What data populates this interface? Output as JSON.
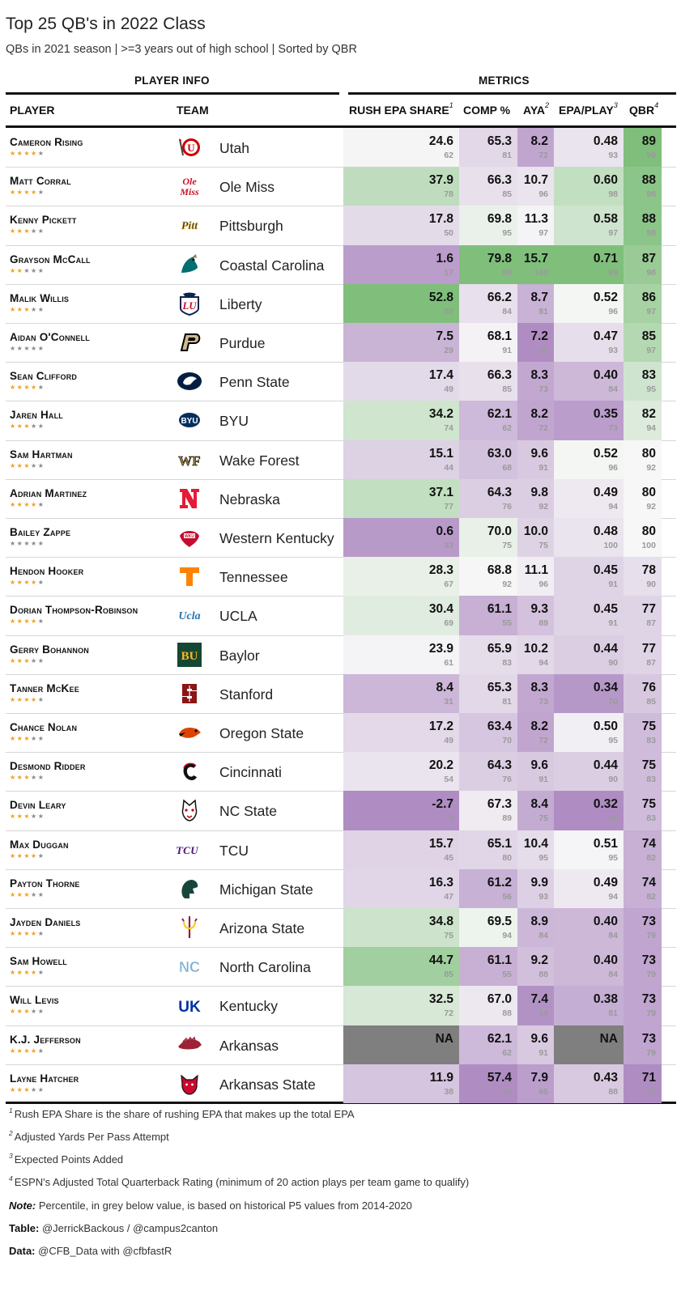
{
  "title": "Top 25 QB's in 2022 Class",
  "subtitle": "QBs in 2021 season | >=3 years out of high school | Sorted by QBR",
  "groups": {
    "player_info": "PLAYER INFO",
    "metrics": "METRICS"
  },
  "columns": {
    "player": "PLAYER",
    "team": "TEAM",
    "rush": "RUSH EPA SHARE",
    "rush_sup": "1",
    "comp": "COMP %",
    "aya": "AYA",
    "aya_sup": "2",
    "epa": "EPA/PLAY",
    "epa_sup": "3",
    "qbr": "QBR",
    "qbr_sup": "4"
  },
  "colors": {
    "green_strong": "#7fbf7b",
    "purple_strong": "#af8dc3",
    "neutral": "#f7f7f7",
    "na": "#7f7f7f"
  },
  "chart_data": {
    "type": "table",
    "title": "Top 25 QB's in 2022 Class",
    "subtitle": "QBs in 2021 season | >=3 years out of high school | Sorted by QBR",
    "columns": [
      "PLAYER",
      "TEAM",
      "RUSH EPA SHARE",
      "COMP %",
      "AYA",
      "EPA/PLAY",
      "QBR"
    ],
    "rows": [
      {
        "player": "Cameron Rising",
        "stars": 4,
        "team": "Utah",
        "logo": "utah-drum-logo",
        "rush": "24.6",
        "rush_p": "62",
        "comp": "65.3",
        "comp_p": "81",
        "aya": "8.2",
        "aya_p": "72",
        "epa": "0.48",
        "epa_p": "93",
        "qbr": "89",
        "qbr_p": "99"
      },
      {
        "player": "Matt Corral",
        "stars": 4,
        "team": "Ole Miss",
        "logo": "ole-miss-script-logo",
        "rush": "37.9",
        "rush_p": "78",
        "comp": "66.3",
        "comp_p": "85",
        "aya": "10.7",
        "aya_p": "96",
        "epa": "0.60",
        "epa_p": "98",
        "qbr": "88",
        "qbr_p": "98"
      },
      {
        "player": "Kenny Pickett",
        "stars": 3,
        "team": "Pittsburgh",
        "logo": "pitt-script-logo",
        "rush": "17.8",
        "rush_p": "50",
        "comp": "69.8",
        "comp_p": "95",
        "aya": "11.3",
        "aya_p": "97",
        "epa": "0.58",
        "epa_p": "97",
        "qbr": "88",
        "qbr_p": "98"
      },
      {
        "player": "Grayson McCall",
        "stars": 2,
        "team": "Coastal Carolina",
        "logo": "chanticleer-logo",
        "rush": "1.6",
        "rush_p": "17",
        "comp": "79.8",
        "comp_p": "99",
        "aya": "15.7",
        "aya_p": "100",
        "epa": "0.71",
        "epa_p": "99",
        "qbr": "87",
        "qbr_p": "98"
      },
      {
        "player": "Malik Willis",
        "stars": 3,
        "team": "Liberty",
        "logo": "liberty-flames-logo",
        "rush": "52.8",
        "rush_p": "89",
        "comp": "66.2",
        "comp_p": "84",
        "aya": "8.7",
        "aya_p": "81",
        "epa": "0.52",
        "epa_p": "96",
        "qbr": "86",
        "qbr_p": "97"
      },
      {
        "player": "Aidan O'Connell",
        "stars": 0,
        "team": "Purdue",
        "logo": "purdue-p-logo",
        "rush": "7.5",
        "rush_p": "29",
        "comp": "68.1",
        "comp_p": "91",
        "aya": "7.2",
        "aya_p": "50",
        "epa": "0.47",
        "epa_p": "93",
        "qbr": "85",
        "qbr_p": "97"
      },
      {
        "player": "Sean Clifford",
        "stars": 4,
        "team": "Penn State",
        "logo": "nittany-lion-logo",
        "rush": "17.4",
        "rush_p": "49",
        "comp": "66.3",
        "comp_p": "85",
        "aya": "8.3",
        "aya_p": "73",
        "epa": "0.40",
        "epa_p": "84",
        "qbr": "83",
        "qbr_p": "95"
      },
      {
        "player": "Jaren Hall",
        "stars": 3,
        "team": "BYU",
        "logo": "byu-oval-logo",
        "rush": "34.2",
        "rush_p": "74",
        "comp": "62.1",
        "comp_p": "62",
        "aya": "8.2",
        "aya_p": "72",
        "epa": "0.35",
        "epa_p": "73",
        "qbr": "82",
        "qbr_p": "94"
      },
      {
        "player": "Sam Hartman",
        "stars": 3,
        "team": "Wake Forest",
        "logo": "wf-logo",
        "rush": "15.1",
        "rush_p": "44",
        "comp": "63.0",
        "comp_p": "68",
        "aya": "9.6",
        "aya_p": "91",
        "epa": "0.52",
        "epa_p": "96",
        "qbr": "80",
        "qbr_p": "92"
      },
      {
        "player": "Adrian Martinez",
        "stars": 4,
        "team": "Nebraska",
        "logo": "nebraska-n-logo",
        "rush": "37.1",
        "rush_p": "77",
        "comp": "64.3",
        "comp_p": "76",
        "aya": "9.8",
        "aya_p": "92",
        "epa": "0.49",
        "epa_p": "94",
        "qbr": "80",
        "qbr_p": "92"
      },
      {
        "player": "Bailey Zappe",
        "stars": 0,
        "team": "Western Kentucky",
        "logo": "wku-towel-logo",
        "rush": "0.6",
        "rush_p": "33",
        "comp": "70.0",
        "comp_p": "75",
        "aya": "10.0",
        "aya_p": "75",
        "epa": "0.48",
        "epa_p": "100",
        "qbr": "80",
        "qbr_p": "100"
      },
      {
        "player": "Hendon Hooker",
        "stars": 4,
        "team": "Tennessee",
        "logo": "tennessee-t-logo",
        "rush": "28.3",
        "rush_p": "67",
        "comp": "68.8",
        "comp_p": "92",
        "aya": "11.1",
        "aya_p": "96",
        "epa": "0.45",
        "epa_p": "91",
        "qbr": "78",
        "qbr_p": "90"
      },
      {
        "player": "Dorian Thompson-Robinson",
        "stars": 4,
        "team": "UCLA",
        "logo": "ucla-script-logo",
        "rush": "30.4",
        "rush_p": "69",
        "comp": "61.1",
        "comp_p": "55",
        "aya": "9.3",
        "aya_p": "89",
        "epa": "0.45",
        "epa_p": "91",
        "qbr": "77",
        "qbr_p": "87"
      },
      {
        "player": "Gerry Bohannon",
        "stars": 3,
        "team": "Baylor",
        "logo": "baylor-bu-logo",
        "rush": "23.9",
        "rush_p": "61",
        "comp": "65.9",
        "comp_p": "83",
        "aya": "10.2",
        "aya_p": "94",
        "epa": "0.44",
        "epa_p": "90",
        "qbr": "77",
        "qbr_p": "87"
      },
      {
        "player": "Tanner McKee",
        "stars": 4,
        "team": "Stanford",
        "logo": "stanford-s-logo",
        "rush": "8.4",
        "rush_p": "31",
        "comp": "65.3",
        "comp_p": "81",
        "aya": "8.3",
        "aya_p": "73",
        "epa": "0.34",
        "epa_p": "70",
        "qbr": "76",
        "qbr_p": "85"
      },
      {
        "player": "Chance Nolan",
        "stars": 3,
        "team": "Oregon State",
        "logo": "beaver-logo",
        "rush": "17.2",
        "rush_p": "49",
        "comp": "63.4",
        "comp_p": "70",
        "aya": "8.2",
        "aya_p": "72",
        "epa": "0.50",
        "epa_p": "95",
        "qbr": "75",
        "qbr_p": "83"
      },
      {
        "player": "Desmond Ridder",
        "stars": 3,
        "team": "Cincinnati",
        "logo": "cincinnati-c-logo",
        "rush": "20.2",
        "rush_p": "54",
        "comp": "64.3",
        "comp_p": "76",
        "aya": "9.6",
        "aya_p": "91",
        "epa": "0.44",
        "epa_p": "90",
        "qbr": "75",
        "qbr_p": "83"
      },
      {
        "player": "Devin Leary",
        "stars": 3,
        "team": "NC State",
        "logo": "wolfpack-logo",
        "rush": "-2.7",
        "rush_p": "9",
        "comp": "67.3",
        "comp_p": "89",
        "aya": "8.4",
        "aya_p": "75",
        "epa": "0.32",
        "epa_p": "66",
        "qbr": "75",
        "qbr_p": "83"
      },
      {
        "player": "Max Duggan",
        "stars": 4,
        "team": "TCU",
        "logo": "tcu-logo",
        "rush": "15.7",
        "rush_p": "45",
        "comp": "65.1",
        "comp_p": "80",
        "aya": "10.4",
        "aya_p": "95",
        "epa": "0.51",
        "epa_p": "95",
        "qbr": "74",
        "qbr_p": "82"
      },
      {
        "player": "Payton Thorne",
        "stars": 3,
        "team": "Michigan State",
        "logo": "spartan-helmet-logo",
        "rush": "16.3",
        "rush_p": "47",
        "comp": "61.2",
        "comp_p": "56",
        "aya": "9.9",
        "aya_p": "93",
        "epa": "0.49",
        "epa_p": "94",
        "qbr": "74",
        "qbr_p": "82"
      },
      {
        "player": "Jayden Daniels",
        "stars": 4,
        "team": "Arizona State",
        "logo": "pitchfork-logo",
        "rush": "34.8",
        "rush_p": "75",
        "comp": "69.5",
        "comp_p": "94",
        "aya": "8.9",
        "aya_p": "84",
        "epa": "0.40",
        "epa_p": "84",
        "qbr": "73",
        "qbr_p": "79"
      },
      {
        "player": "Sam Howell",
        "stars": 4,
        "team": "North Carolina",
        "logo": "unc-nc-logo",
        "rush": "44.7",
        "rush_p": "85",
        "comp": "61.1",
        "comp_p": "55",
        "aya": "9.2",
        "aya_p": "88",
        "epa": "0.40",
        "epa_p": "84",
        "qbr": "73",
        "qbr_p": "79"
      },
      {
        "player": "Will Levis",
        "stars": 3,
        "team": "Kentucky",
        "logo": "kentucky-uk-logo",
        "rush": "32.5",
        "rush_p": "72",
        "comp": "67.0",
        "comp_p": "88",
        "aya": "7.4",
        "aya_p": "54",
        "epa": "0.38",
        "epa_p": "81",
        "qbr": "73",
        "qbr_p": "79"
      },
      {
        "player": "K.J. Jefferson",
        "stars": 4,
        "team": "Arkansas",
        "logo": "razorback-logo",
        "rush": "NA",
        "rush_p": "",
        "comp": "62.1",
        "comp_p": "62",
        "aya": "9.6",
        "aya_p": "91",
        "epa": "NA",
        "epa_p": "",
        "qbr": "73",
        "qbr_p": "79"
      },
      {
        "player": "Layne Hatcher",
        "stars": 3,
        "team": "Arkansas State",
        "logo": "red-wolf-logo",
        "rush": "11.9",
        "rush_p": "38",
        "comp": "57.4",
        "comp_p": "32",
        "aya": "7.9",
        "aya_p": "65",
        "epa": "0.43",
        "epa_p": "88",
        "qbr": "71",
        "qbr_p": "75"
      }
    ]
  },
  "footnotes": {
    "f1_num": "1",
    "f1": "Rush EPA Share is the share of rushing EPA that makes up the total EPA",
    "f2_num": "2",
    "f2": "Adjusted Yards Per Pass Attempt",
    "f3_num": "3",
    "f3": "Expected Points Added",
    "f4_num": "4",
    "f4": "ESPN's Adjusted Total Quarterback Rating (minimum of 20 action plays per team game to qualify)",
    "note_label": "Note:",
    "note": " Percentile, in grey below value, is based on historical P5 values from 2014-2020",
    "table_label": "Table:",
    "table": " @JerrickBackous / @campus2canton",
    "data_label": "Data:",
    "data": " @CFB_Data with @cfbfastR"
  }
}
